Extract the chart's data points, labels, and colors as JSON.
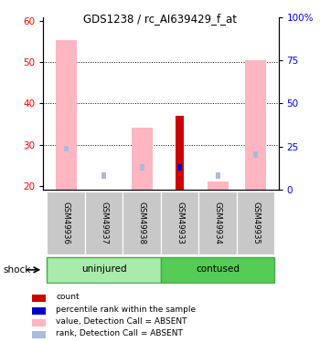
{
  "title": "GDS1238 / rc_AI639429_f_at",
  "samples": [
    "GSM49936",
    "GSM49937",
    "GSM49938",
    "GSM49933",
    "GSM49934",
    "GSM49935"
  ],
  "ylim_left": [
    19,
    61
  ],
  "yticks_left": [
    20,
    30,
    40,
    50,
    60
  ],
  "yticks_right": [
    0,
    25,
    50,
    75,
    100
  ],
  "yticklabels_right": [
    "0",
    "25",
    "50",
    "75",
    "100%"
  ],
  "color_value_absent": "#FFB6C1",
  "color_rank_absent": "#AABBDD",
  "color_count": "#CC0000",
  "color_rank": "#0000CC",
  "color_sample_bg": "#C8C8C8",
  "color_group_light": "#AAEAAA",
  "color_group_dark": "#55CC55",
  "color_group_border": "#44AA44",
  "bars": [
    {
      "value_absent": 55.5,
      "rank_absent": 29.0,
      "count": null,
      "rank": null
    },
    {
      "value_absent": null,
      "rank_absent": 22.5,
      "count": null,
      "rank": null
    },
    {
      "value_absent": 34.0,
      "rank_absent": 24.5,
      "count": null,
      "rank": null
    },
    {
      "value_absent": null,
      "rank_absent": null,
      "count": 37.0,
      "rank": 24.5
    },
    {
      "value_absent": 21.0,
      "rank_absent": 22.5,
      "count": null,
      "rank": null
    },
    {
      "value_absent": 50.5,
      "rank_absent": 27.5,
      "count": null,
      "rank": null
    }
  ],
  "legend_items": [
    {
      "label": "count",
      "color": "#CC0000"
    },
    {
      "label": "percentile rank within the sample",
      "color": "#0000CC"
    },
    {
      "label": "value, Detection Call = ABSENT",
      "color": "#FFB6C1"
    },
    {
      "label": "rank, Detection Call = ABSENT",
      "color": "#AABBDD"
    }
  ]
}
